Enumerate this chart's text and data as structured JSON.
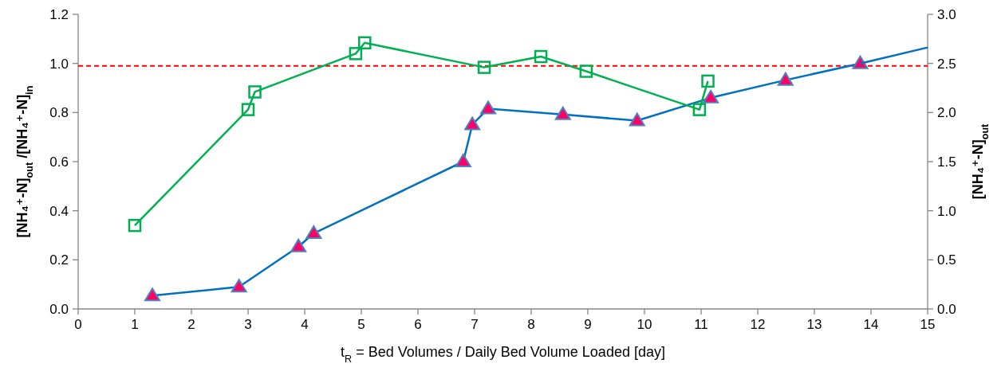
{
  "chart_data": {
    "type": "line",
    "xlabel": "t$_{R}$ = Bed Volumes / Daily Bed Volume Loaded [day]",
    "ylabel": "[NH₄⁺-N]$_{out}$ /[NH₄⁺-N]$_{in}$",
    "y2label": "[NH₄⁺-N]$_{out}$",
    "xlim": [
      0,
      15
    ],
    "xticks": [
      0,
      1,
      2,
      3,
      4,
      5,
      6,
      7,
      8,
      9,
      10,
      11,
      12,
      13,
      14,
      15
    ],
    "ylim": [
      0,
      1.2
    ],
    "yticks": [
      {
        "value": 0,
        "label": "0.0"
      },
      0.2,
      0.4,
      0.6,
      0.8,
      {
        "value": 1,
        "label": "1.0"
      },
      1.2
    ],
    "y2lim": [
      0,
      3
    ],
    "y2ticks": [
      {
        "value": 0,
        "label": "0.0"
      },
      0.5,
      {
        "value": 1,
        "label": "1.0"
      },
      1.5,
      {
        "value": 2,
        "label": "2.0"
      },
      2.5,
      {
        "value": 3,
        "label": "3.0"
      }
    ],
    "grid": false,
    "ref_lines": [
      {
        "axis": "y",
        "value": 0.99,
        "color": "#ff0000",
        "line_style": "dashed"
      }
    ],
    "series": [
      {
        "color": "#0070c0",
        "marker": "triangle",
        "x": [
          1.31,
          2.84,
          3.89,
          4.16,
          6.8,
          6.96,
          7.24,
          8.56,
          9.87,
          11.17,
          12.49,
          13.81
        ],
        "values": [
          0.054,
          0.09,
          0.254,
          0.308,
          0.6,
          0.751,
          0.816,
          0.792,
          0.767,
          0.86,
          0.932,
          1.0
        ]
      },
      {
        "color": "#0070c0",
        "marker": "none",
        "x": [
          13.81,
          15
        ],
        "values": [
          1.0,
          1.065
        ]
      },
      {
        "color": "#00b050",
        "marker": "square",
        "axis": "y2",
        "x": [
          1.0,
          3.0,
          3.12,
          4.9,
          5.06,
          7.17,
          8.17,
          8.97,
          10.97,
          11.12
        ],
        "values": [
          0.85,
          2.03,
          2.21,
          2.6,
          2.71,
          2.46,
          2.57,
          2.42,
          2.03,
          2.32
        ]
      }
    ]
  }
}
